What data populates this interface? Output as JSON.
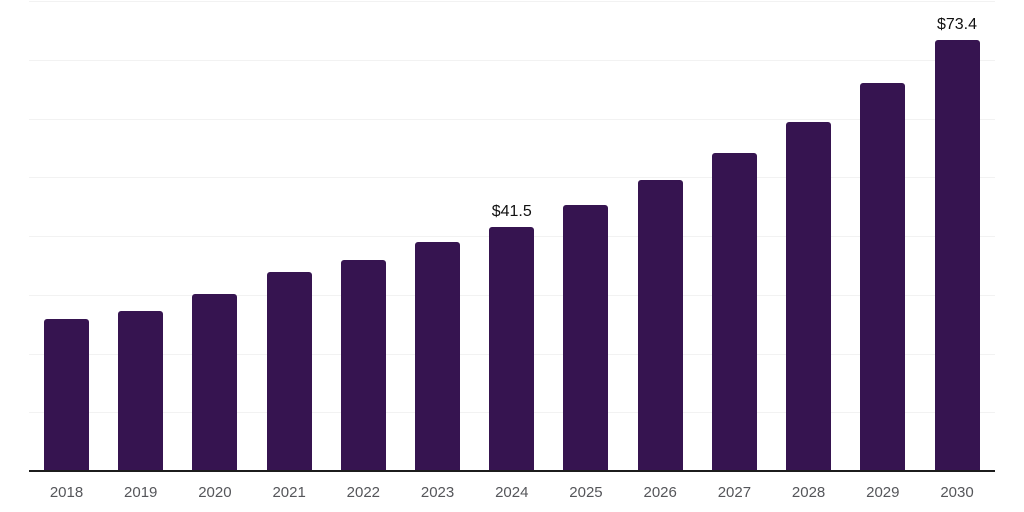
{
  "chart": {
    "background": "#ffffff",
    "bar_color": "#361450",
    "axis_line_color": "#1c1c1c",
    "gridline_color": "#f2f2f2",
    "tick_label_color": "#55565a",
    "data_label_color": "#111111"
  },
  "chart_data": {
    "type": "bar",
    "title": "",
    "xlabel": "",
    "ylabel": "",
    "categories": [
      "2018",
      "2019",
      "2020",
      "2021",
      "2022",
      "2023",
      "2024",
      "2025",
      "2026",
      "2027",
      "2028",
      "2029",
      "2030"
    ],
    "values": [
      25.8,
      27.3,
      30.2,
      33.9,
      36.0,
      39.0,
      41.5,
      45.3,
      49.5,
      54.2,
      59.4,
      66.0,
      73.4
    ],
    "data_labels": [
      "",
      "",
      "",
      "",
      "",
      "",
      "$41.5",
      "",
      "",
      "",
      "",
      "",
      "$73.4"
    ],
    "ylim": [
      0,
      80
    ],
    "gridline_step": 10,
    "grid": "horizontal",
    "legend": "none",
    "y_axis_labels": "none"
  }
}
